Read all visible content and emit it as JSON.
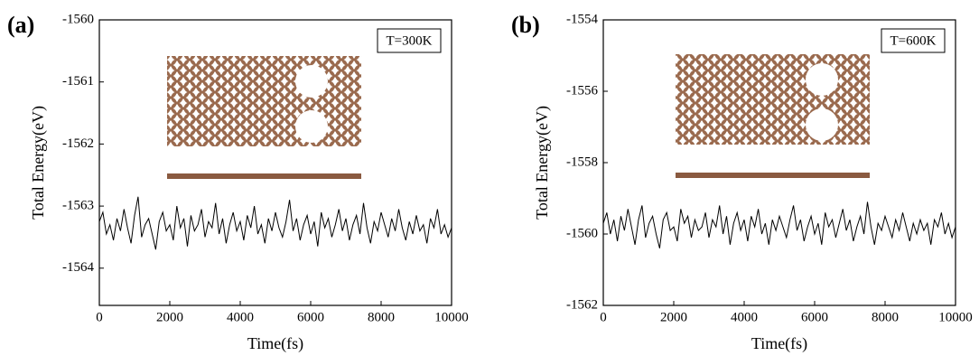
{
  "chart_data": [
    {
      "type": "line",
      "panel_label": "(a)",
      "annotation": "T=300K",
      "xlabel": "Time(fs)",
      "ylabel": "Total Energy(eV)",
      "color": "#000000",
      "xlim": [
        0,
        10000
      ],
      "xticks": [
        0,
        2000,
        4000,
        6000,
        8000,
        10000
      ],
      "ylim": [
        -1564.6,
        -1560
      ],
      "yticks": [
        -1564,
        -1563,
        -1562,
        -1561,
        -1560
      ],
      "x": [
        0,
        100,
        200,
        300,
        400,
        500,
        600,
        700,
        800,
        900,
        1000,
        1100,
        1200,
        1300,
        1400,
        1500,
        1600,
        1700,
        1800,
        1900,
        2000,
        2100,
        2200,
        2300,
        2400,
        2500,
        2600,
        2700,
        2800,
        2900,
        3000,
        3100,
        3200,
        3300,
        3400,
        3500,
        3600,
        3700,
        3800,
        3900,
        4000,
        4100,
        4200,
        4300,
        4400,
        4500,
        4600,
        4700,
        4800,
        4900,
        5000,
        5100,
        5200,
        5300,
        5400,
        5500,
        5600,
        5700,
        5800,
        5900,
        6000,
        6100,
        6200,
        6300,
        6400,
        6500,
        6600,
        6700,
        6800,
        6900,
        7000,
        7100,
        7200,
        7300,
        7400,
        7500,
        7600,
        7700,
        7800,
        7900,
        8000,
        8100,
        8200,
        8300,
        8400,
        8500,
        8600,
        8700,
        8800,
        8900,
        9000,
        9100,
        9200,
        9300,
        9400,
        9500,
        9600,
        9700,
        9800,
        9900,
        10000
      ],
      "values": [
        -1563.25,
        -1563.1,
        -1563.45,
        -1563.3,
        -1563.55,
        -1563.2,
        -1563.4,
        -1563.05,
        -1563.35,
        -1563.6,
        -1563.15,
        -1562.85,
        -1563.5,
        -1563.3,
        -1563.2,
        -1563.45,
        -1563.7,
        -1563.25,
        -1563.1,
        -1563.4,
        -1563.3,
        -1563.55,
        -1563.0,
        -1563.35,
        -1563.2,
        -1563.65,
        -1563.15,
        -1563.4,
        -1563.3,
        -1563.05,
        -1563.5,
        -1563.25,
        -1563.35,
        -1562.95,
        -1563.45,
        -1563.2,
        -1563.6,
        -1563.3,
        -1563.1,
        -1563.4,
        -1563.25,
        -1563.55,
        -1563.15,
        -1563.35,
        -1563.0,
        -1563.45,
        -1563.3,
        -1563.6,
        -1563.2,
        -1563.4,
        -1563.1,
        -1563.35,
        -1563.5,
        -1563.25,
        -1562.9,
        -1563.4,
        -1563.2,
        -1563.55,
        -1563.3,
        -1563.15,
        -1563.45,
        -1563.25,
        -1563.65,
        -1563.1,
        -1563.35,
        -1563.2,
        -1563.5,
        -1563.3,
        -1563.05,
        -1563.4,
        -1563.2,
        -1563.55,
        -1563.3,
        -1563.15,
        -1563.45,
        -1562.95,
        -1563.35,
        -1563.6,
        -1563.25,
        -1563.4,
        -1563.1,
        -1563.3,
        -1563.5,
        -1563.2,
        -1563.4,
        -1563.05,
        -1563.35,
        -1563.55,
        -1563.25,
        -1563.45,
        -1563.15,
        -1563.4,
        -1563.3,
        -1563.6,
        -1563.2,
        -1563.35,
        -1563.05,
        -1563.45,
        -1563.3,
        -1563.5,
        -1563.35
      ]
    },
    {
      "type": "line",
      "panel_label": "(b)",
      "annotation": "T=600K",
      "xlabel": "Time(fs)",
      "ylabel": "Total Energy(eV)",
      "color": "#000000",
      "xlim": [
        0,
        10000
      ],
      "xticks": [
        0,
        2000,
        4000,
        6000,
        8000,
        10000
      ],
      "ylim": [
        -1562,
        -1554
      ],
      "yticks": [
        -1562,
        -1560,
        -1558,
        -1556,
        -1554
      ],
      "x": [
        0,
        100,
        200,
        300,
        400,
        500,
        600,
        700,
        800,
        900,
        1000,
        1100,
        1200,
        1300,
        1400,
        1500,
        1600,
        1700,
        1800,
        1900,
        2000,
        2100,
        2200,
        2300,
        2400,
        2500,
        2600,
        2700,
        2800,
        2900,
        3000,
        3100,
        3200,
        3300,
        3400,
        3500,
        3600,
        3700,
        3800,
        3900,
        4000,
        4100,
        4200,
        4300,
        4400,
        4500,
        4600,
        4700,
        4800,
        4900,
        5000,
        5100,
        5200,
        5300,
        5400,
        5500,
        5600,
        5700,
        5800,
        5900,
        6000,
        6100,
        6200,
        6300,
        6400,
        6500,
        6600,
        6700,
        6800,
        6900,
        7000,
        7100,
        7200,
        7300,
        7400,
        7500,
        7600,
        7700,
        7800,
        7900,
        8000,
        8100,
        8200,
        8300,
        8400,
        8500,
        8600,
        8700,
        8800,
        8900,
        9000,
        9100,
        9200,
        9300,
        9400,
        9500,
        9600,
        9700,
        9800,
        9900,
        10000
      ],
      "values": [
        -1559.7,
        -1559.4,
        -1560.0,
        -1559.6,
        -1560.2,
        -1559.5,
        -1559.9,
        -1559.3,
        -1559.8,
        -1560.3,
        -1559.6,
        -1559.2,
        -1560.1,
        -1559.7,
        -1559.5,
        -1560.0,
        -1560.4,
        -1559.6,
        -1559.4,
        -1559.9,
        -1559.8,
        -1560.2,
        -1559.3,
        -1559.7,
        -1559.5,
        -1560.1,
        -1559.6,
        -1559.9,
        -1559.8,
        -1559.4,
        -1560.1,
        -1559.6,
        -1559.8,
        -1559.2,
        -1560.0,
        -1559.5,
        -1560.3,
        -1559.7,
        -1559.4,
        -1559.9,
        -1559.6,
        -1560.2,
        -1559.5,
        -1559.8,
        -1559.3,
        -1560.0,
        -1559.7,
        -1560.3,
        -1559.6,
        -1559.9,
        -1559.5,
        -1559.8,
        -1560.1,
        -1559.6,
        -1559.2,
        -1559.9,
        -1559.6,
        -1560.2,
        -1559.8,
        -1559.5,
        -1560.0,
        -1559.7,
        -1560.3,
        -1559.4,
        -1559.8,
        -1559.6,
        -1560.1,
        -1559.7,
        -1559.3,
        -1559.9,
        -1559.6,
        -1560.2,
        -1559.8,
        -1559.5,
        -1560.0,
        -1559.1,
        -1559.8,
        -1560.3,
        -1559.7,
        -1559.9,
        -1559.5,
        -1559.8,
        -1560.1,
        -1559.6,
        -1559.9,
        -1559.4,
        -1559.8,
        -1560.2,
        -1559.7,
        -1560.0,
        -1559.6,
        -1559.9,
        -1559.7,
        -1560.3,
        -1559.6,
        -1559.8,
        -1559.4,
        -1560.0,
        -1559.7,
        -1560.1,
        -1559.8
      ]
    }
  ]
}
